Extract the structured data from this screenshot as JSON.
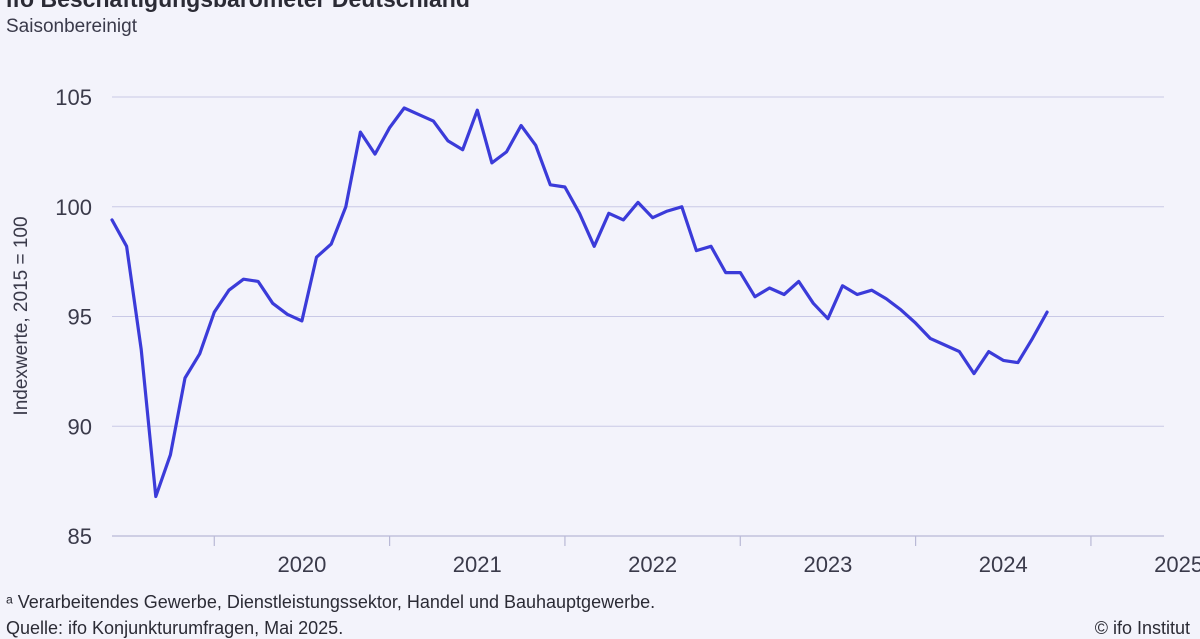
{
  "header": {
    "title": "ifo Beschäftigungsbarometer Deutschland",
    "subtitle": "Saisonbereinigt"
  },
  "footer": {
    "footnote": "ᵃ Verarbeitendes Gewerbe, Dienstleistungssektor, Handel und Bauhauptgewerbe.",
    "source": "Quelle: ifo Konjunkturumfragen, Mai 2025.",
    "copyright": "© ifo Institut"
  },
  "colors": {
    "line": "#3b3bd9",
    "grid": "#c9c9e6",
    "background": "#f3f3fb",
    "text": "#3a3a4a"
  },
  "chart_data": {
    "type": "line",
    "title": "ifo Beschäftigungsbarometer Deutschland",
    "subtitle": "Saisonbereinigt",
    "xlabel": "",
    "ylabel": "Indexwerte, 2015 = 100",
    "ylim": [
      85,
      105
    ],
    "yticks": [
      85,
      90,
      95,
      100,
      105
    ],
    "xlim": [
      2019.4167,
      2025.4167
    ],
    "year_labels": [
      "2020",
      "2021",
      "2022",
      "2023",
      "2024",
      "2025"
    ],
    "grid": true,
    "series": [
      {
        "name": "ifo Beschäftigungsbarometer",
        "start": "2019-06",
        "frequency": "monthly",
        "values": [
          99.4,
          98.2,
          93.5,
          86.8,
          88.7,
          92.2,
          93.3,
          95.2,
          96.2,
          96.7,
          96.6,
          95.6,
          95.1,
          94.8,
          97.7,
          98.3,
          100.0,
          103.4,
          102.4,
          103.6,
          104.5,
          104.2,
          103.9,
          103.0,
          102.6,
          104.4,
          102.0,
          102.5,
          103.7,
          102.8,
          101.0,
          100.9,
          99.7,
          98.2,
          99.7,
          99.4,
          100.2,
          99.5,
          99.8,
          100.0,
          98.0,
          98.2,
          97.0,
          97.0,
          95.9,
          96.3,
          96.0,
          96.6,
          95.6,
          94.9,
          96.4,
          96.0,
          96.2,
          95.8,
          95.3,
          94.7,
          94.0,
          93.7,
          93.4,
          92.4,
          93.4,
          93.0,
          92.9,
          94.0,
          95.2
        ]
      }
    ]
  }
}
